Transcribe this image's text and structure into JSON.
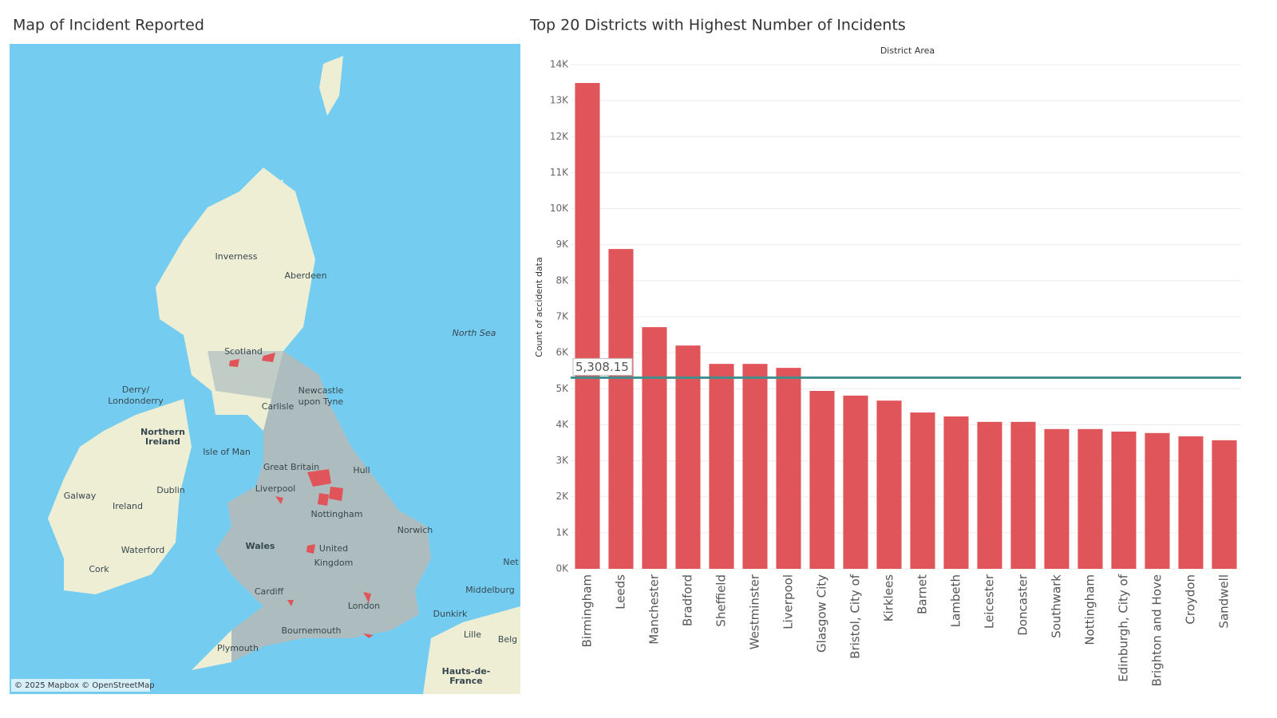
{
  "map": {
    "title": "Map of Incident Reported",
    "labels": [
      "Inverness",
      "Aberdeen",
      "North Sea",
      "Scotland",
      "Derry/",
      "Londonderry",
      "Northern",
      "Ireland",
      "Newcastle",
      "upon Tyne",
      "Carlisle",
      "Isle of Man",
      "Great Britain",
      "Hull",
      "Liverpool",
      "Nottingham",
      "Dublin",
      "Galway",
      "Ireland",
      "Norwich",
      "Wales",
      "United",
      "Kingdom",
      "Waterford",
      "Cork",
      "Cardiff",
      "London",
      "Bournemouth",
      "Plymouth",
      "Middelburg",
      "Dunkirk",
      "Lille",
      "Belg",
      "Net",
      "Hauts-de-",
      "France"
    ],
    "attribution": "© 2025 Mapbox © OpenStreetMap"
  },
  "chart_data": {
    "type": "bar",
    "title": "Top 20 Districts with Highest Number of Incidents",
    "header": "District Area",
    "y_label": "Count of accident data",
    "categories": [
      "Birmingham",
      "Leeds",
      "Manchester",
      "Bradford",
      "Sheffield",
      "Westminster",
      "Liverpool",
      "Glasgow City",
      "Bristol, City of",
      "Kirklees",
      "Barnet",
      "Lambeth",
      "Leicester",
      "Doncaster",
      "Southwark",
      "Nottingham",
      "Edinburgh, City of",
      "Brighton and Hove",
      "Croydon",
      "Sandwell"
    ],
    "values": [
      13490,
      8880,
      6710,
      6200,
      5690,
      5690,
      5580,
      4940,
      4810,
      4670,
      4340,
      4230,
      4080,
      4080,
      3880,
      3880,
      3810,
      3770,
      3680,
      3570
    ],
    "color": "#e05559",
    "ylim": [
      0,
      14000
    ],
    "yticks": [
      {
        "value": 0,
        "label": "0K"
      },
      {
        "value": 1000,
        "label": "1K"
      },
      {
        "value": 2000,
        "label": "2K"
      },
      {
        "value": 3000,
        "label": "3K"
      },
      {
        "value": 4000,
        "label": "4K"
      },
      {
        "value": 5000,
        "label": "5K"
      },
      {
        "value": 6000,
        "label": "6K"
      },
      {
        "value": 7000,
        "label": "7K"
      },
      {
        "value": 8000,
        "label": "8K"
      },
      {
        "value": 9000,
        "label": "9K"
      },
      {
        "value": 10000,
        "label": "10K"
      },
      {
        "value": 11000,
        "label": "11K"
      },
      {
        "value": 12000,
        "label": "12K"
      },
      {
        "value": 13000,
        "label": "13K"
      },
      {
        "value": 14000,
        "label": "14K"
      }
    ],
    "grid": true,
    "reference_line": {
      "value": 5308.15,
      "label": "5,308.15",
      "color": "#3f8f8c"
    }
  }
}
